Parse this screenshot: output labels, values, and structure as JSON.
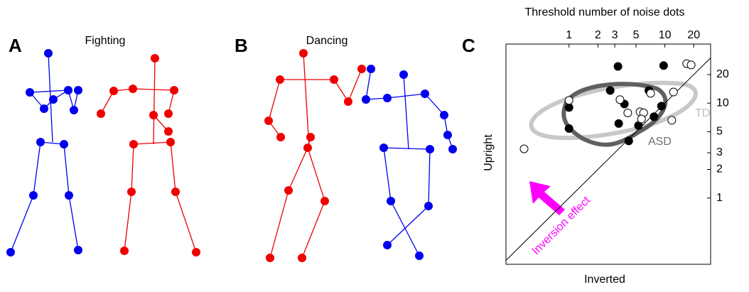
{
  "panels": [
    {
      "letter": "A",
      "title": "Fighting"
    },
    {
      "letter": "B",
      "title": "Dancing"
    }
  ],
  "chart_data": {
    "type": "scatter",
    "letter": "C",
    "title": "Threshold number of noise dots",
    "x_label": "Inverted",
    "y_label": "Upright",
    "log_scale": true,
    "xlim": [
      0.22,
      30
    ],
    "ylim": [
      0.2,
      42
    ],
    "xticks": [
      1,
      2,
      3,
      5,
      10,
      20
    ],
    "yticks": [
      1,
      2,
      3,
      5,
      10,
      20
    ],
    "series": [
      {
        "name": "ASD",
        "color": "#000000",
        "x": [
          3.24,
          9.7,
          2.69,
          1.0,
          3.78,
          1.0,
          3.3,
          5.3,
          9.2,
          6.8,
          4.2,
          7.7
        ],
        "values": [
          24.4,
          24.9,
          13.6,
          9.0,
          9.8,
          5.4,
          6.1,
          5.8,
          9.3,
          13.6,
          4.0,
          7.2
        ]
      },
      {
        "name": "TD",
        "color": "#ffffff",
        "x": [
          0.34,
          1.0,
          3.4,
          7.1,
          5.5,
          6.0,
          5.7,
          11.8,
          12.3,
          16.9,
          18.8,
          4.1
        ],
        "values": [
          3.3,
          10.7,
          10.9,
          12.7,
          8.1,
          7.9,
          6.8,
          6.6,
          13.1,
          26.1,
          25.3,
          7.9
        ]
      }
    ],
    "annotation": "Inversion effect"
  }
}
